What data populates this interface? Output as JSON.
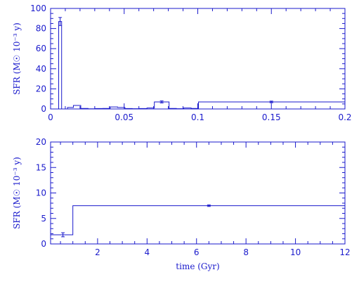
{
  "colors": {
    "axis": "#1a1acc",
    "line": "#1a1acc"
  },
  "chart_data": [
    {
      "type": "line",
      "step": true,
      "xlabel": "",
      "ylabel": "SFR (M☉ 10⁻³ y)",
      "xlim": [
        0,
        0.2
      ],
      "ylim": [
        0,
        100
      ],
      "x_major_ticks": [
        0,
        0.05,
        0.1,
        0.15,
        0.2
      ],
      "x_tick_labels": [
        "0",
        "0.05",
        "0.1",
        "0.15",
        "0.2"
      ],
      "x_minor_step": 0.01,
      "y_major_ticks": [
        0,
        20,
        40,
        60,
        80,
        100
      ],
      "y_tick_labels": [
        "0",
        "20",
        "40",
        "60",
        "80",
        "100"
      ],
      "y_minor_step": 5,
      "bins": [
        {
          "x0": 0.0,
          "x1": 0.0055,
          "y": 0
        },
        {
          "x0": 0.0055,
          "x1": 0.0075,
          "y": 87
        },
        {
          "x0": 0.0075,
          "x1": 0.0115,
          "y": 0
        },
        {
          "x0": 0.0115,
          "x1": 0.0155,
          "y": 1.5
        },
        {
          "x0": 0.0155,
          "x1": 0.0205,
          "y": 3.5
        },
        {
          "x0": 0.0205,
          "x1": 0.0255,
          "y": 0.5
        },
        {
          "x0": 0.0255,
          "x1": 0.0305,
          "y": 0.2
        },
        {
          "x0": 0.0305,
          "x1": 0.0355,
          "y": 0.4
        },
        {
          "x0": 0.0355,
          "x1": 0.0405,
          "y": 0.5
        },
        {
          "x0": 0.0405,
          "x1": 0.0455,
          "y": 2
        },
        {
          "x0": 0.0455,
          "x1": 0.0505,
          "y": 1.5
        },
        {
          "x0": 0.0505,
          "x1": 0.0555,
          "y": 0.4
        },
        {
          "x0": 0.0555,
          "x1": 0.0605,
          "y": 0.3
        },
        {
          "x0": 0.0605,
          "x1": 0.0655,
          "y": 0.4
        },
        {
          "x0": 0.0655,
          "x1": 0.0705,
          "y": 1
        },
        {
          "x0": 0.0705,
          "x1": 0.0805,
          "y": 7
        },
        {
          "x0": 0.0805,
          "x1": 0.0855,
          "y": 0.5
        },
        {
          "x0": 0.0855,
          "x1": 0.0905,
          "y": 0.3
        },
        {
          "x0": 0.0905,
          "x1": 0.0955,
          "y": 1
        },
        {
          "x0": 0.0955,
          "x1": 0.1005,
          "y": 0.5
        },
        {
          "x0": 0.1005,
          "x1": 0.2,
          "y": 7
        }
      ],
      "error_bars": [
        {
          "x": 0.0065,
          "y": 87,
          "err": 4
        },
        {
          "x": 0.0755,
          "y": 7,
          "err": 1
        },
        {
          "x": 0.15,
          "y": 7,
          "err": 0.8
        }
      ]
    },
    {
      "type": "line",
      "step": true,
      "xlabel": "time (Gyr)",
      "ylabel": "SFR (M☉ 10⁻³ y)",
      "xlim": [
        0.1,
        12
      ],
      "ylim": [
        0,
        20
      ],
      "x_major_ticks": [
        2,
        4,
        6,
        8,
        10,
        12
      ],
      "x_tick_labels": [
        "2",
        "4",
        "6",
        "8",
        "10",
        "12"
      ],
      "x_minor_step": 0.5,
      "y_major_ticks": [
        0,
        5,
        10,
        15,
        20
      ],
      "y_tick_labels": [
        "0",
        "5",
        "10",
        "15",
        "20"
      ],
      "y_minor_step": 1,
      "bins": [
        {
          "x0": 0.1,
          "x1": 1.0,
          "y": 1.8
        },
        {
          "x0": 1.0,
          "x1": 12,
          "y": 7.5
        }
      ],
      "error_bars": [
        {
          "x": 0.6,
          "y": 1.8,
          "err": 0.4
        },
        {
          "x": 6.5,
          "y": 7.5,
          "err": 0.15
        }
      ]
    }
  ]
}
